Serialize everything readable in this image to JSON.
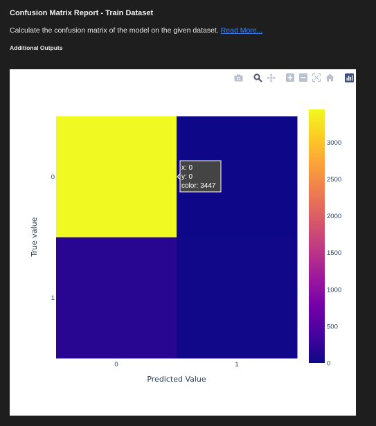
{
  "report": {
    "title": "Confusion Matrix Report - Train Dataset",
    "description": "Calculate the confusion matrix of the model on the given dataset.",
    "read_more": "Read More...",
    "section": "Additional Outputs"
  },
  "modebar": {
    "icons": [
      "camera-icon",
      "zoom-icon",
      "pan-icon",
      "zoom-in-icon",
      "zoom-out-icon",
      "autoscale-icon",
      "home-icon",
      "plotly-logo-icon"
    ]
  },
  "colors": {
    "plasma": [
      "#0d0887",
      "#46039f",
      "#7201a8",
      "#9c179e",
      "#bd3786",
      "#d8576b",
      "#ed7953",
      "#fb9f3a",
      "#fdca26",
      "#f0f921"
    ]
  },
  "hover": {
    "x_line": "x: 0",
    "y_line": "y: 0",
    "color_line": "color: 3447"
  },
  "chart_data": {
    "type": "heatmap",
    "x_categories": [
      "0",
      "1"
    ],
    "y_categories": [
      "0",
      "1"
    ],
    "z": [
      [
        3447,
        10
      ],
      [
        180,
        30
      ]
    ],
    "xlabel": "Predicted Value",
    "ylabel": "True value",
    "colorscale": "plasma",
    "zrange": [
      0,
      3447
    ],
    "colorbar_ticks": [
      "0",
      "500",
      "1000",
      "1500",
      "2000",
      "2500",
      "3000"
    ],
    "colorbar_tick_values": [
      0,
      500,
      1000,
      1500,
      2000,
      2500,
      3000
    ]
  }
}
